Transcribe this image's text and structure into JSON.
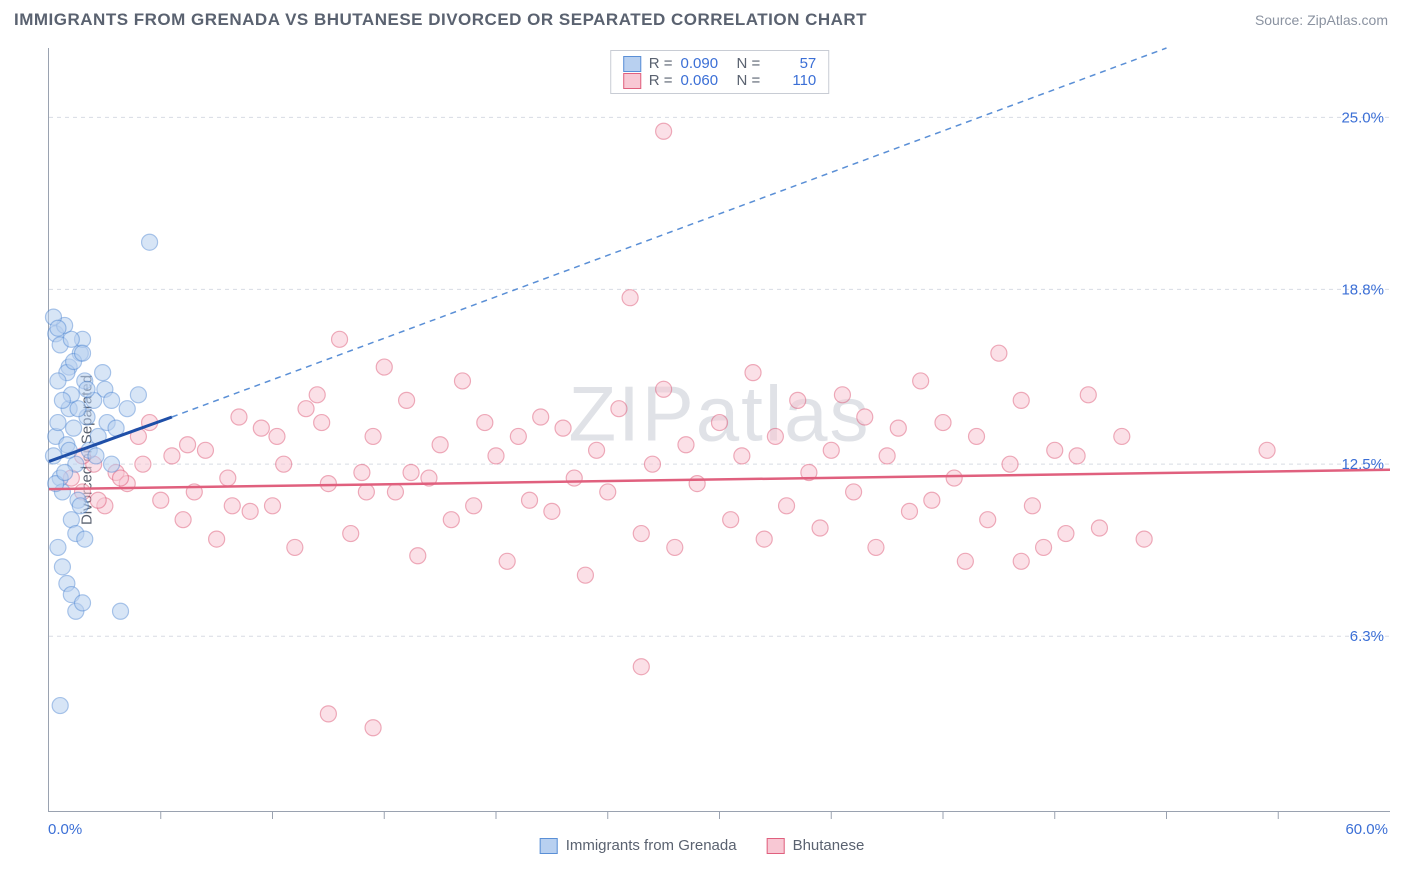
{
  "header": {
    "title": "IMMIGRANTS FROM GRENADA VS BHUTANESE DIVORCED OR SEPARATED CORRELATION CHART",
    "source": "Source: ZipAtlas.com"
  },
  "watermark": "ZIPatlas",
  "ylabel": "Divorced or Separated",
  "chart": {
    "type": "scatter",
    "xlim": [
      0,
      60
    ],
    "ylim": [
      0,
      27.5
    ],
    "x_axis_min_label": "0.0%",
    "x_axis_max_label": "60.0%",
    "y_ticks": [
      6.3,
      12.5,
      18.8,
      25.0
    ],
    "y_tick_labels": [
      "6.3%",
      "12.5%",
      "18.8%",
      "25.0%"
    ],
    "x_ticks": [
      5,
      10,
      15,
      20,
      25,
      30,
      35,
      40,
      45,
      50,
      55
    ],
    "grid_color": "#d8dce4",
    "grid_dash": "4,4",
    "background_color": "#ffffff",
    "axis_color": "#9aa2b0",
    "tick_label_color": "#3b6fd6",
    "y_tick_fontsize": 15,
    "marker_radius": 8,
    "marker_opacity": 0.55,
    "series": [
      {
        "name": "Immigrants from Grenada",
        "color_fill": "#b8d0f0",
        "color_stroke": "#5a8fd6",
        "R": "0.090",
        "N": "57",
        "trend": {
          "x1": 0,
          "y1": 12.6,
          "x2": 5.5,
          "y2": 14.2,
          "color": "#1f4fa8",
          "width": 3,
          "dash": "none"
        },
        "trend_ext": {
          "x1": 5.5,
          "y1": 14.2,
          "x2": 50,
          "y2": 27.5,
          "color": "#5a8fd6",
          "width": 1.5,
          "dash": "6,5"
        },
        "points": [
          [
            0.2,
            12.8
          ],
          [
            0.3,
            13.5
          ],
          [
            0.4,
            14.0
          ],
          [
            0.5,
            12.0
          ],
          [
            0.6,
            11.5
          ],
          [
            0.8,
            13.2
          ],
          [
            0.9,
            14.5
          ],
          [
            1.0,
            15.0
          ],
          [
            1.1,
            13.8
          ],
          [
            1.2,
            12.5
          ],
          [
            1.3,
            11.2
          ],
          [
            1.4,
            16.5
          ],
          [
            1.5,
            17.0
          ],
          [
            1.6,
            15.5
          ],
          [
            1.7,
            14.2
          ],
          [
            1.8,
            13.0
          ],
          [
            0.3,
            17.2
          ],
          [
            0.5,
            16.8
          ],
          [
            0.7,
            17.5
          ],
          [
            0.9,
            16.0
          ],
          [
            1.0,
            10.5
          ],
          [
            1.2,
            10.0
          ],
          [
            1.4,
            11.0
          ],
          [
            1.6,
            9.8
          ],
          [
            0.4,
            9.5
          ],
          [
            0.6,
            8.8
          ],
          [
            0.8,
            8.2
          ],
          [
            1.0,
            7.8
          ],
          [
            1.2,
            7.2
          ],
          [
            2.0,
            14.8
          ],
          [
            2.2,
            13.5
          ],
          [
            2.4,
            15.8
          ],
          [
            2.6,
            14.0
          ],
          [
            2.8,
            12.5
          ],
          [
            3.0,
            13.8
          ],
          [
            3.5,
            14.5
          ],
          [
            4.0,
            15.0
          ],
          [
            0.2,
            17.8
          ],
          [
            0.4,
            17.4
          ],
          [
            4.5,
            20.5
          ],
          [
            0.5,
            3.8
          ],
          [
            1.5,
            7.5
          ],
          [
            3.2,
            7.2
          ],
          [
            2.5,
            15.2
          ],
          [
            0.8,
            15.8
          ],
          [
            1.1,
            16.2
          ],
          [
            0.6,
            14.8
          ],
          [
            0.9,
            13.0
          ],
          [
            1.3,
            14.5
          ],
          [
            1.7,
            15.2
          ],
          [
            2.1,
            12.8
          ],
          [
            0.3,
            11.8
          ],
          [
            0.7,
            12.2
          ],
          [
            1.0,
            17.0
          ],
          [
            1.5,
            16.5
          ],
          [
            0.4,
            15.5
          ],
          [
            2.8,
            14.8
          ]
        ]
      },
      {
        "name": "Bhutanese",
        "color_fill": "#f8c8d4",
        "color_stroke": "#e0607e",
        "R": "0.060",
        "N": "110",
        "trend": {
          "x1": 0,
          "y1": 11.6,
          "x2": 60,
          "y2": 12.3,
          "color": "#e0607e",
          "width": 2.5,
          "dash": "none"
        },
        "points": [
          [
            1.0,
            12.0
          ],
          [
            1.5,
            11.5
          ],
          [
            2.0,
            12.5
          ],
          [
            2.5,
            11.0
          ],
          [
            3.0,
            12.2
          ],
          [
            3.5,
            11.8
          ],
          [
            4.0,
            13.5
          ],
          [
            4.5,
            14.0
          ],
          [
            5.0,
            11.2
          ],
          [
            5.5,
            12.8
          ],
          [
            6.0,
            10.5
          ],
          [
            6.5,
            11.5
          ],
          [
            7.0,
            13.0
          ],
          [
            7.5,
            9.8
          ],
          [
            8.0,
            12.0
          ],
          [
            8.5,
            14.2
          ],
          [
            9.0,
            10.8
          ],
          [
            9.5,
            13.8
          ],
          [
            10.0,
            11.0
          ],
          [
            10.5,
            12.5
          ],
          [
            11.0,
            9.5
          ],
          [
            11.5,
            14.5
          ],
          [
            12.0,
            15.0
          ],
          [
            12.5,
            11.8
          ],
          [
            13.0,
            17.0
          ],
          [
            13.5,
            10.0
          ],
          [
            14.0,
            12.2
          ],
          [
            14.5,
            13.5
          ],
          [
            15.0,
            16.0
          ],
          [
            15.5,
            11.5
          ],
          [
            16.0,
            14.8
          ],
          [
            16.5,
            9.2
          ],
          [
            17.0,
            12.0
          ],
          [
            17.5,
            13.2
          ],
          [
            18.0,
            10.5
          ],
          [
            18.5,
            15.5
          ],
          [
            19.0,
            11.0
          ],
          [
            19.5,
            14.0
          ],
          [
            20.0,
            12.8
          ],
          [
            20.5,
            9.0
          ],
          [
            21.0,
            13.5
          ],
          [
            21.5,
            11.2
          ],
          [
            22.0,
            14.2
          ],
          [
            22.5,
            10.8
          ],
          [
            23.0,
            13.8
          ],
          [
            23.5,
            12.0
          ],
          [
            24.0,
            8.5
          ],
          [
            24.5,
            13.0
          ],
          [
            25.0,
            11.5
          ],
          [
            25.5,
            14.5
          ],
          [
            26.0,
            18.5
          ],
          [
            26.5,
            10.0
          ],
          [
            27.0,
            12.5
          ],
          [
            27.5,
            15.2
          ],
          [
            28.0,
            9.5
          ],
          [
            28.5,
            13.2
          ],
          [
            29.0,
            11.8
          ],
          [
            26.5,
            5.2
          ],
          [
            27.5,
            24.5
          ],
          [
            30.0,
            14.0
          ],
          [
            30.5,
            10.5
          ],
          [
            31.0,
            12.8
          ],
          [
            31.5,
            15.8
          ],
          [
            32.0,
            9.8
          ],
          [
            32.5,
            13.5
          ],
          [
            33.0,
            11.0
          ],
          [
            33.5,
            14.8
          ],
          [
            34.0,
            12.2
          ],
          [
            34.5,
            10.2
          ],
          [
            35.0,
            13.0
          ],
          [
            35.5,
            15.0
          ],
          [
            36.0,
            11.5
          ],
          [
            36.5,
            14.2
          ],
          [
            37.0,
            9.5
          ],
          [
            37.5,
            12.8
          ],
          [
            38.0,
            13.8
          ],
          [
            38.5,
            10.8
          ],
          [
            39.0,
            15.5
          ],
          [
            39.5,
            11.2
          ],
          [
            40.0,
            14.0
          ],
          [
            40.5,
            12.0
          ],
          [
            41.0,
            9.0
          ],
          [
            41.5,
            13.5
          ],
          [
            42.0,
            10.5
          ],
          [
            42.5,
            16.5
          ],
          [
            43.0,
            12.5
          ],
          [
            43.5,
            14.8
          ],
          [
            44.0,
            11.0
          ],
          [
            44.5,
            9.5
          ],
          [
            45.0,
            13.0
          ],
          [
            45.5,
            10.0
          ],
          [
            46.0,
            12.8
          ],
          [
            46.5,
            15.0
          ],
          [
            47.0,
            10.2
          ],
          [
            48.0,
            13.5
          ],
          [
            49.0,
            9.8
          ],
          [
            12.5,
            3.5
          ],
          [
            14.5,
            3.0
          ],
          [
            43.5,
            9.0
          ],
          [
            54.5,
            13.0
          ],
          [
            1.5,
            12.8
          ],
          [
            2.2,
            11.2
          ],
          [
            3.2,
            12.0
          ],
          [
            4.2,
            12.5
          ],
          [
            6.2,
            13.2
          ],
          [
            8.2,
            11.0
          ],
          [
            10.2,
            13.5
          ],
          [
            12.2,
            14.0
          ],
          [
            14.2,
            11.5
          ],
          [
            16.2,
            12.2
          ]
        ]
      }
    ]
  },
  "legend_bottom": [
    {
      "label": "Immigrants from Grenada",
      "fill": "#b8d0f0",
      "stroke": "#5a8fd6"
    },
    {
      "label": "Bhutanese",
      "fill": "#f8c8d4",
      "stroke": "#e0607e"
    }
  ]
}
